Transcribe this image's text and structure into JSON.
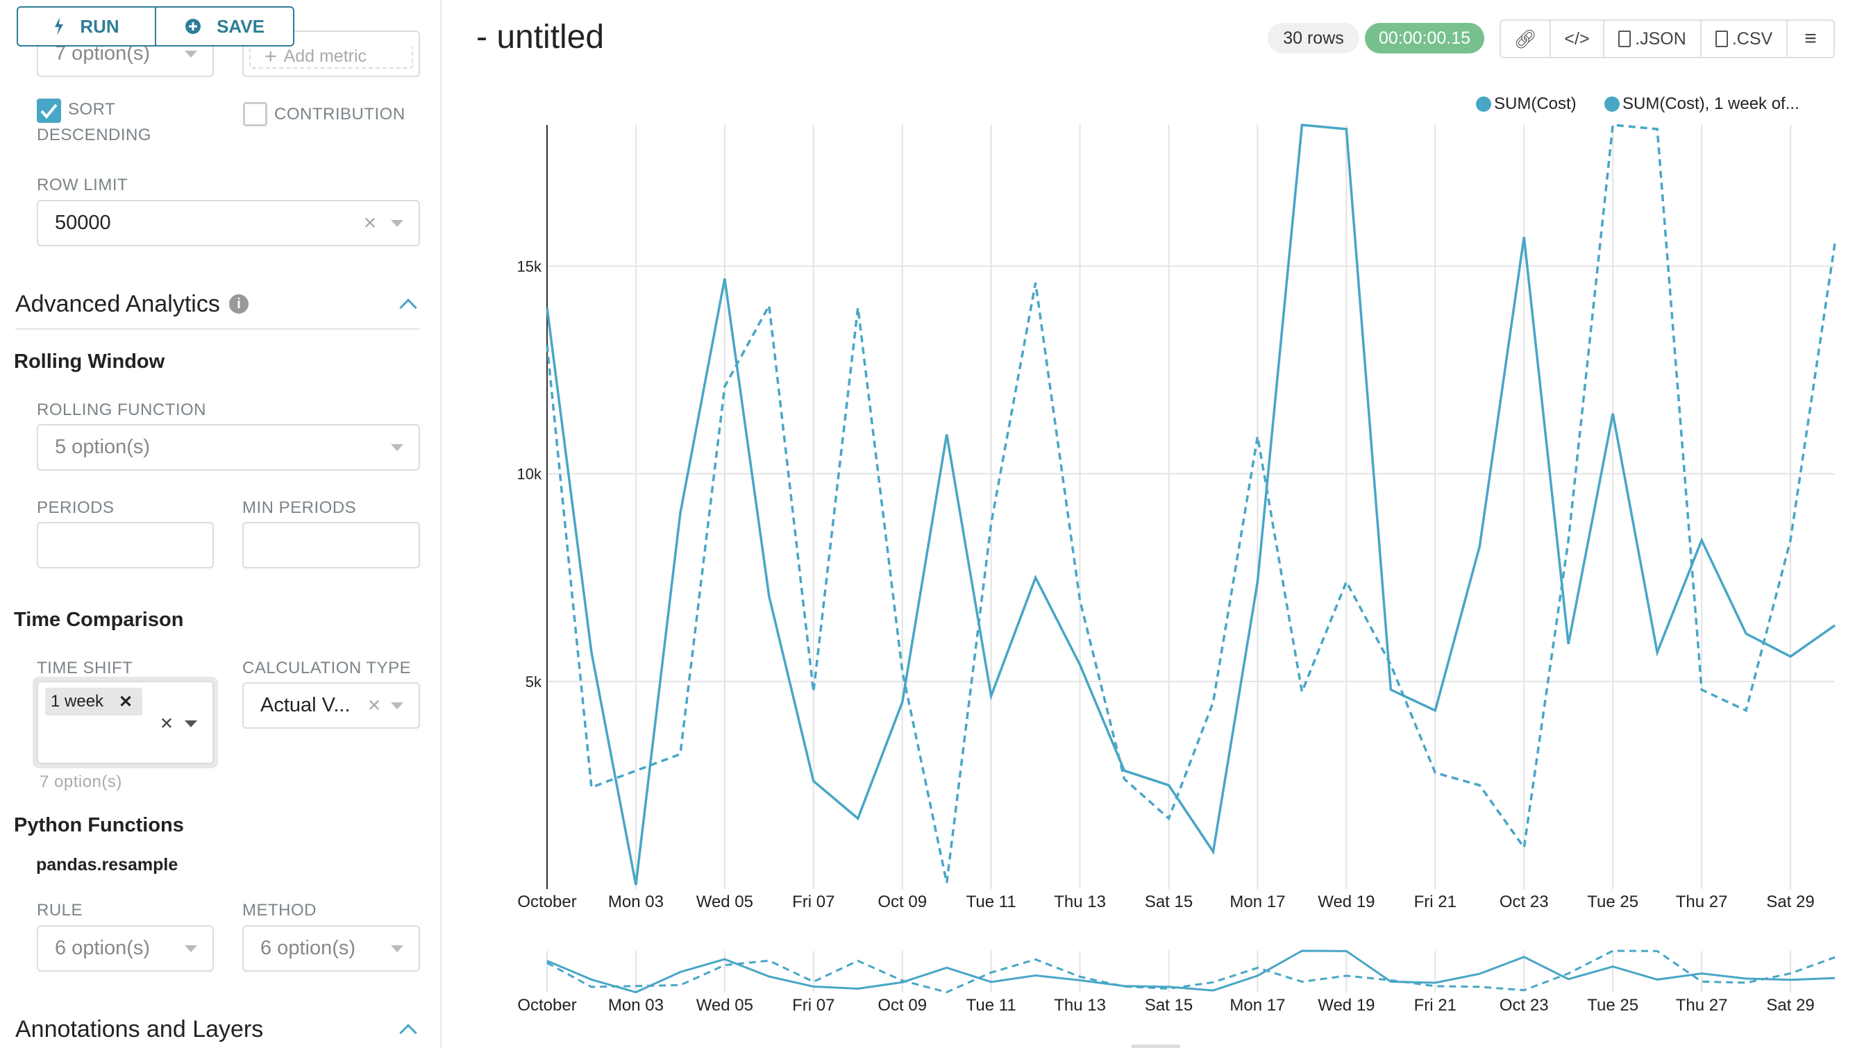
{
  "toolbar": {
    "run_label": "RUN",
    "save_label": "SAVE"
  },
  "sidebar": {
    "metrics_select": "7 option(s)",
    "add_metric": "Add metric",
    "sort_descending": {
      "label_line1": "SORT",
      "label_line2": "DESCENDING",
      "checked": true
    },
    "contribution": {
      "label": "CONTRIBUTION",
      "checked": false
    },
    "row_limit": {
      "label": "ROW LIMIT",
      "value": "50000"
    },
    "advanced_analytics": {
      "title": "Advanced Analytics"
    },
    "rolling_window": {
      "title": "Rolling Window",
      "rolling_function_label": "ROLLING FUNCTION",
      "rolling_function_value": "5 option(s)",
      "periods_label": "PERIODS",
      "periods_value": "",
      "min_periods_label": "MIN PERIODS",
      "min_periods_value": ""
    },
    "time_comparison": {
      "title": "Time Comparison",
      "time_shift_label": "TIME SHIFT",
      "time_shift_tag": "1 week",
      "time_shift_hint": "7 option(s)",
      "calculation_type_label": "CALCULATION TYPE",
      "calculation_type_value": "Actual V..."
    },
    "python_functions": {
      "title": "Python Functions",
      "subtitle": "pandas.resample",
      "rule_label": "RULE",
      "rule_value": "6 option(s)",
      "method_label": "METHOD",
      "method_value": "6 option(s)"
    },
    "annotations": {
      "title": "Annotations and Layers"
    }
  },
  "header": {
    "title": "- untitled",
    "rows_badge": "30 rows",
    "timer_badge": "00:00:00.15",
    "json_label": ".JSON",
    "csv_label": ".CSV"
  },
  "colors": {
    "accent": "#2e7d98",
    "series": "#48a6c6",
    "timer": "#78c08e",
    "checkbox": "#48a6c6"
  },
  "chart_data": {
    "type": "line",
    "x": [
      "Oct 01",
      "Oct 02",
      "Oct 03",
      "Oct 04",
      "Oct 05",
      "Oct 06",
      "Oct 07",
      "Oct 08",
      "Oct 09",
      "Oct 10",
      "Oct 11",
      "Oct 12",
      "Oct 13",
      "Oct 14",
      "Oct 15",
      "Oct 16",
      "Oct 17",
      "Oct 18",
      "Oct 19",
      "Oct 20",
      "Oct 21",
      "Oct 22",
      "Oct 23",
      "Oct 24",
      "Oct 25",
      "Oct 26",
      "Oct 27",
      "Oct 28",
      "Oct 29",
      "Oct 30"
    ],
    "x_tick_labels": [
      "October",
      "Mon 03",
      "Wed 05",
      "Fri 07",
      "Oct 09",
      "Tue 11",
      "Thu 13",
      "Sat 15",
      "Mon 17",
      "Wed 19",
      "Fri 21",
      "Oct 23",
      "Tue 25",
      "Thu 27",
      "Sat 29"
    ],
    "y_tick_labels": [
      "5k",
      "10k",
      "15k"
    ],
    "y_ticks": [
      5000,
      10000,
      15000
    ],
    "ylim": [
      0,
      18500
    ],
    "grid": true,
    "legend_position": "top-right",
    "series": [
      {
        "name": "SUM(Cost)",
        "style": "solid",
        "values": [
          14000,
          5700,
          100,
          9050,
          14700,
          7050,
          2600,
          1700,
          4500,
          10950,
          4650,
          7500,
          5400,
          2850,
          2500,
          900,
          7400,
          18400,
          18300,
          4800,
          4300,
          8250,
          15700,
          5900,
          11450,
          5700,
          8400,
          6150,
          5600,
          6350
        ]
      },
      {
        "name": "SUM(Cost), 1 week of...",
        "style": "dashed",
        "values": [
          13100,
          2450,
          2850,
          3250,
          12100,
          14050,
          4750,
          14000,
          5250,
          150,
          8800,
          14600,
          6950,
          2650,
          1700,
          4500,
          10900,
          4750,
          7400,
          5400,
          2800,
          2500,
          1000,
          8400,
          18400,
          18300,
          4800,
          4300,
          8400,
          15550
        ]
      }
    ]
  }
}
